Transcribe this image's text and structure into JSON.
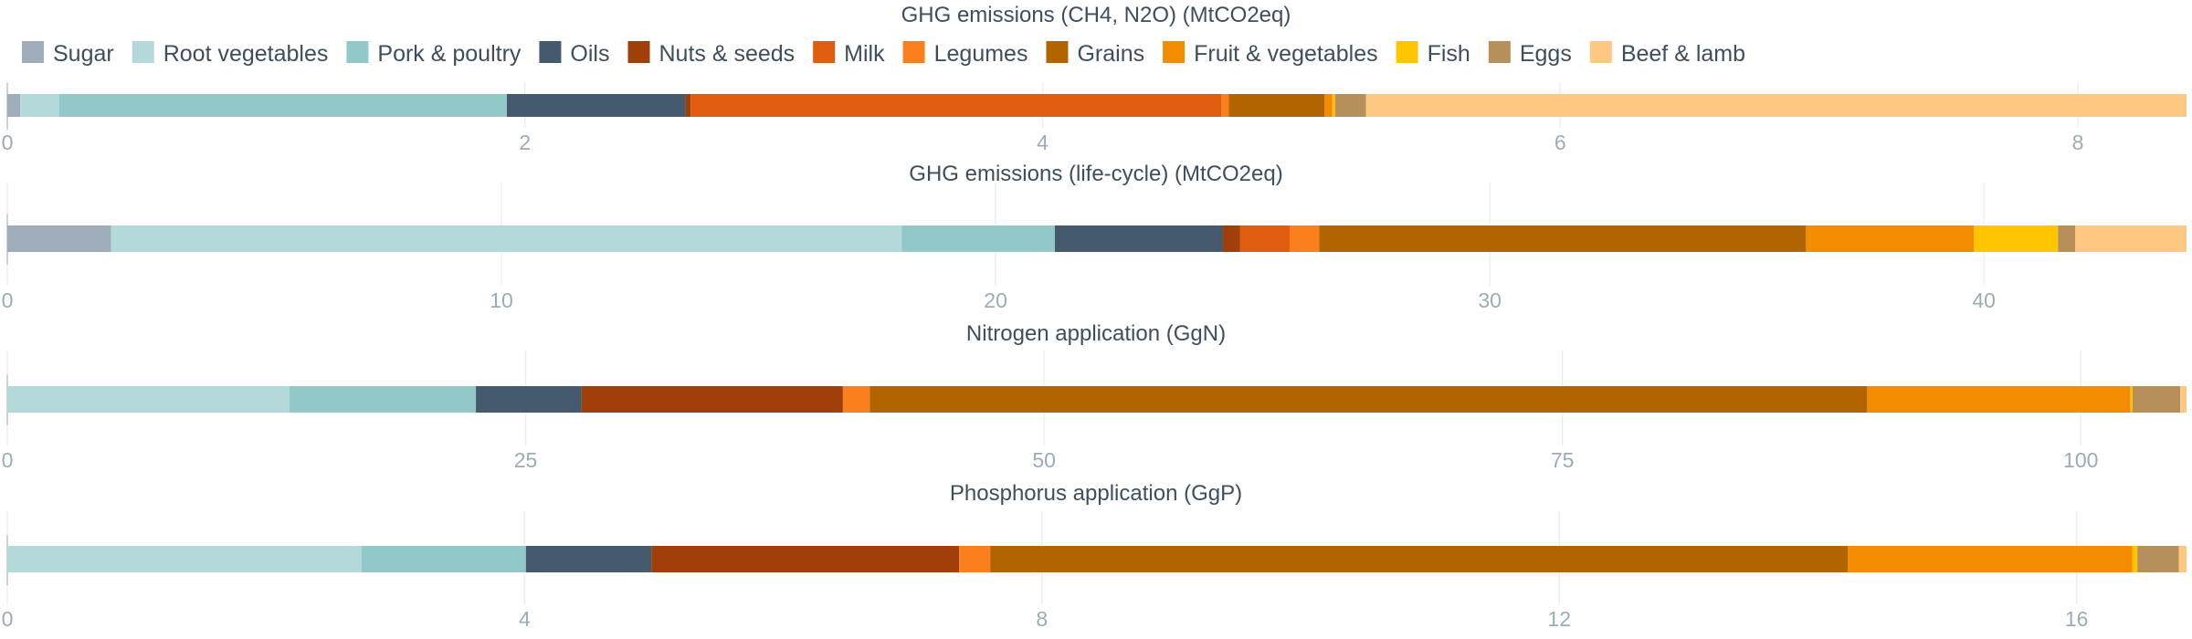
{
  "legend": [
    {
      "name": "Sugar",
      "color": "#9fadbb"
    },
    {
      "name": "Root vegetables",
      "color": "#b3d9da"
    },
    {
      "name": "Pork & poultry",
      "color": "#93c8c9"
    },
    {
      "name": "Oils",
      "color": "#455a6c"
    },
    {
      "name": "Nuts & seeds",
      "color": "#a03f09"
    },
    {
      "name": "Milk",
      "color": "#e05d10"
    },
    {
      "name": "Legumes",
      "color": "#fb7f1c"
    },
    {
      "name": "Grains",
      "color": "#b16400"
    },
    {
      "name": "Fruit & vegetables",
      "color": "#f38c00"
    },
    {
      "name": "Fish",
      "color": "#ffc600"
    },
    {
      "name": "Eggs",
      "color": "#b78f5b"
    },
    {
      "name": "Beef & lamb",
      "color": "#ffc882"
    }
  ],
  "chart_data": [
    {
      "type": "bar",
      "orientation": "horizontal-stacked",
      "title": "GHG emissions (CH4, N2O) (MtCO2eq)",
      "xlim": [
        0,
        8.42
      ],
      "ticks": [
        0,
        2,
        4,
        6,
        8
      ],
      "series": [
        {
          "name": "Sugar",
          "value": 0.05
        },
        {
          "name": "Root vegetables",
          "value": 0.15
        },
        {
          "name": "Pork & poultry",
          "value": 1.73
        },
        {
          "name": "Oils",
          "value": 0.69
        },
        {
          "name": "Nuts & seeds",
          "value": 0.02
        },
        {
          "name": "Milk",
          "value": 2.05
        },
        {
          "name": "Legumes",
          "value": 0.03
        },
        {
          "name": "Grains",
          "value": 0.37
        },
        {
          "name": "Fruit & vegetables",
          "value": 0.03
        },
        {
          "name": "Fish",
          "value": 0.01
        },
        {
          "name": "Eggs",
          "value": 0.12
        },
        {
          "name": "Beef & lamb",
          "value": 3.17
        }
      ]
    },
    {
      "type": "bar",
      "orientation": "horizontal-stacked",
      "title": "GHG emissions (life-cycle) (MtCO2eq)",
      "xlim": [
        0,
        44.1
      ],
      "ticks": [
        0,
        10,
        20,
        30,
        40
      ],
      "series": [
        {
          "name": "Sugar",
          "value": 2.1
        },
        {
          "name": "Root vegetables",
          "value": 16.0
        },
        {
          "name": "Pork & poultry",
          "value": 3.1
        },
        {
          "name": "Oils",
          "value": 3.4
        },
        {
          "name": "Nuts & seeds",
          "value": 0.35
        },
        {
          "name": "Milk",
          "value": 1.0
        },
        {
          "name": "Legumes",
          "value": 0.6
        },
        {
          "name": "Grains",
          "value": 9.85
        },
        {
          "name": "Fruit & vegetables",
          "value": 3.4
        },
        {
          "name": "Fish",
          "value": 1.7
        },
        {
          "name": "Eggs",
          "value": 0.35
        },
        {
          "name": "Beef & lamb",
          "value": 2.25
        }
      ]
    },
    {
      "type": "bar",
      "orientation": "horizontal-stacked",
      "title": "Nitrogen application (GgN)",
      "xlim": [
        0,
        105.1
      ],
      "ticks": [
        0,
        25,
        50,
        75,
        100
      ],
      "series": [
        {
          "name": "Sugar",
          "value": 0
        },
        {
          "name": "Root vegetables",
          "value": 13.6
        },
        {
          "name": "Pork & poultry",
          "value": 9.0
        },
        {
          "name": "Oils",
          "value": 5.1
        },
        {
          "name": "Nuts & seeds",
          "value": 12.6
        },
        {
          "name": "Milk",
          "value": 0
        },
        {
          "name": "Legumes",
          "value": 1.3
        },
        {
          "name": "Grains",
          "value": 48.1
        },
        {
          "name": "Fruit & vegetables",
          "value": 12.7
        },
        {
          "name": "Fish",
          "value": 0.1
        },
        {
          "name": "Eggs",
          "value": 2.3
        },
        {
          "name": "Beef & lamb",
          "value": 0.3
        }
      ]
    },
    {
      "type": "bar",
      "orientation": "horizontal-stacked",
      "title": "Phosphorus application (GgP)",
      "xlim": [
        0,
        16.85
      ],
      "ticks": [
        0,
        4,
        8,
        12,
        16
      ],
      "series": [
        {
          "name": "Sugar",
          "value": 0
        },
        {
          "name": "Root vegetables",
          "value": 2.74
        },
        {
          "name": "Pork & poultry",
          "value": 1.27
        },
        {
          "name": "Oils",
          "value": 0.97
        },
        {
          "name": "Nuts & seeds",
          "value": 2.38
        },
        {
          "name": "Milk",
          "value": 0
        },
        {
          "name": "Legumes",
          "value": 0.24
        },
        {
          "name": "Grains",
          "value": 6.63
        },
        {
          "name": "Fruit & vegetables",
          "value": 2.2
        },
        {
          "name": "Fish",
          "value": 0.04
        },
        {
          "name": "Eggs",
          "value": 0.32
        },
        {
          "name": "Beef & lamb",
          "value": 0.06
        }
      ]
    }
  ]
}
